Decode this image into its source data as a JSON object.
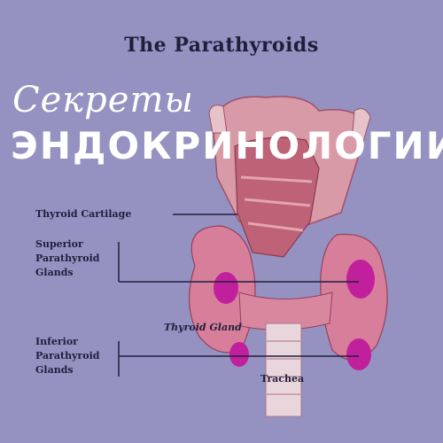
{
  "diagram": {
    "title": "The Parathyroids",
    "labels": {
      "thyroid_cartilage": "Thyroid Cartilage",
      "superior_parathyroid": [
        "Superior",
        "Parathyroid",
        "Glands"
      ],
      "thyroid_gland": "Thyroid Gland",
      "inferior_parathyroid": [
        "Inferior",
        "Parathyroid",
        "Glands"
      ],
      "trachea": "Trachea"
    }
  },
  "overlay": {
    "script_text": "Секреты",
    "main_text": "ЭНДОКРИНОЛОГИИ"
  },
  "colors": {
    "background": "#9592c2",
    "overlay_text": "#ffffff",
    "label_text": "#1f1f3c",
    "tissue": "#d99aa8",
    "muscle": "#b5566c",
    "gland": "#c1209c"
  }
}
